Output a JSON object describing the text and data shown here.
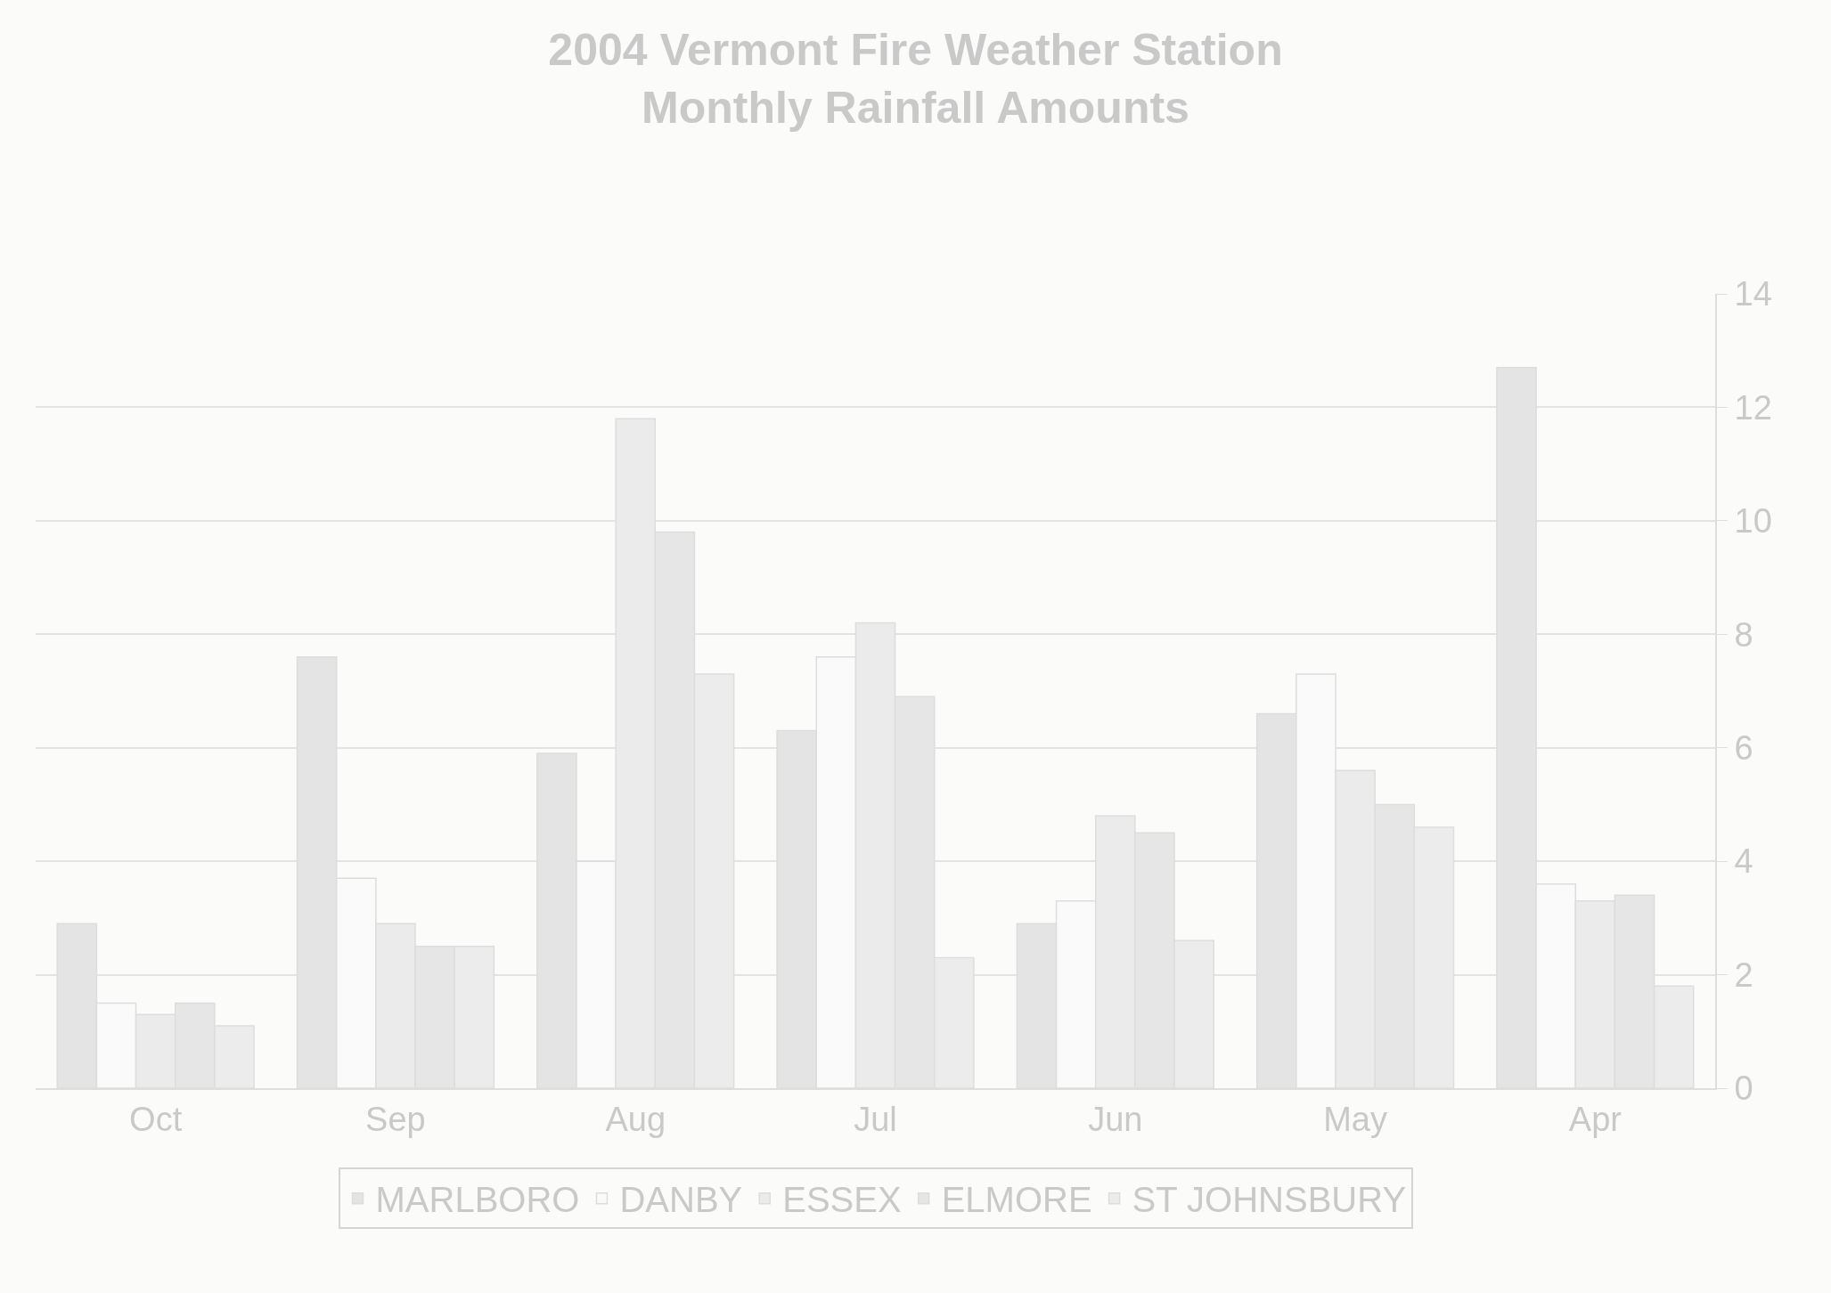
{
  "chart_data": {
    "type": "bar",
    "title": "2004 Vermont Fire Weather Station\nMonthly Rainfall Amounts",
    "categories": [
      "Oct",
      "Sep",
      "Aug",
      "Jul",
      "Jun",
      "May",
      "Apr"
    ],
    "series": [
      {
        "name": "MARLBORO",
        "color": "#e4e4e4",
        "values": [
          2.9,
          7.6,
          5.9,
          6.3,
          2.9,
          6.6,
          12.7
        ]
      },
      {
        "name": "DANBY",
        "color": "#fafafa",
        "values": [
          1.5,
          3.7,
          4.0,
          7.6,
          3.3,
          7.3,
          3.6
        ]
      },
      {
        "name": "ESSEX",
        "color": "#ebebeb",
        "values": [
          1.3,
          2.9,
          11.8,
          8.2,
          4.8,
          5.6,
          3.3
        ]
      },
      {
        "name": "ELMORE",
        "color": "#e6e6e6",
        "values": [
          1.5,
          2.5,
          9.8,
          6.9,
          4.5,
          5.0,
          3.4
        ]
      },
      {
        "name": "ST JOHNSBURY",
        "color": "#ececec",
        "values": [
          1.1,
          2.5,
          7.3,
          2.3,
          2.6,
          4.6,
          1.8
        ]
      }
    ],
    "ylim": [
      0,
      14
    ],
    "yticks": [
      0,
      2,
      4,
      6,
      8,
      10,
      12,
      14
    ],
    "grid": "y",
    "legend": "bottom"
  }
}
